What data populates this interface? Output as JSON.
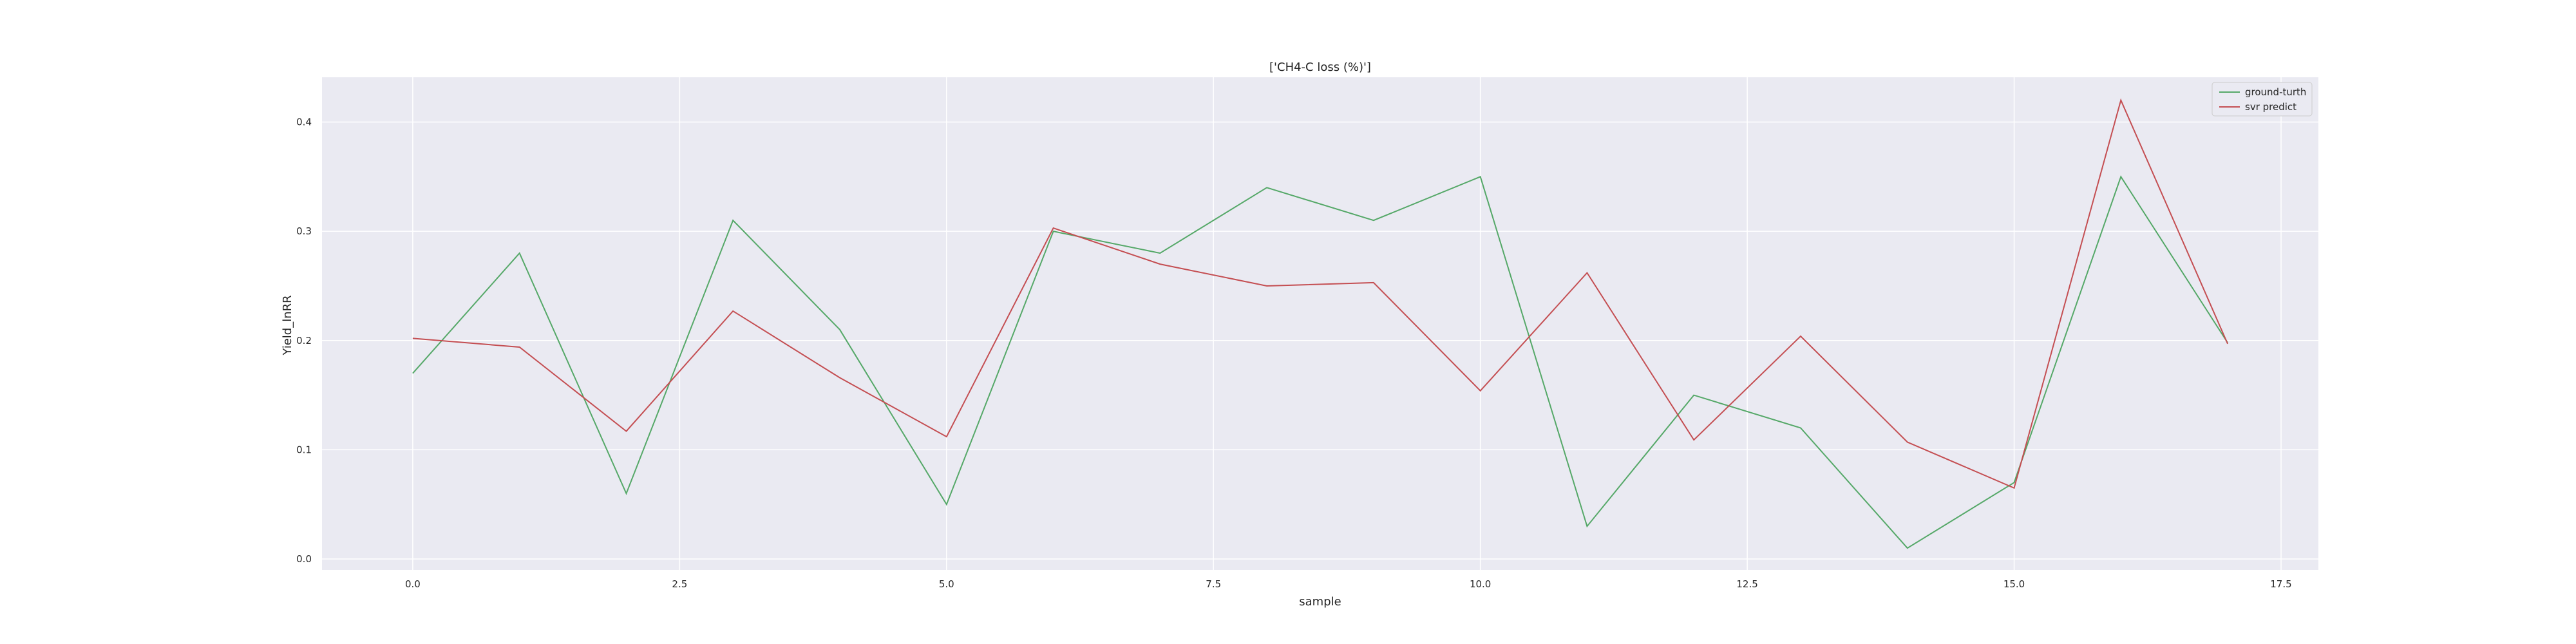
{
  "chart_data": {
    "type": "line",
    "title": "['CH4-C loss (%)']",
    "xlabel": "sample",
    "ylabel": "Yield_lnRR",
    "xlim": [
      -0.85,
      17.85
    ],
    "ylim": [
      -0.01,
      0.441
    ],
    "x": [
      0,
      1,
      2,
      3,
      4,
      5,
      6,
      7,
      8,
      9,
      10,
      11,
      12,
      13,
      14,
      15,
      16,
      17
    ],
    "x_ticks": [
      0.0,
      2.5,
      5.0,
      7.5,
      10.0,
      12.5,
      15.0,
      17.5
    ],
    "x_tick_labels": [
      "0.0",
      "2.5",
      "5.0",
      "7.5",
      "10.0",
      "12.5",
      "15.0",
      "17.5"
    ],
    "y_ticks": [
      0.0,
      0.1,
      0.2,
      0.3,
      0.4
    ],
    "y_tick_labels": [
      "0.0",
      "0.1",
      "0.2",
      "0.3",
      "0.4"
    ],
    "grid": true,
    "legend_position": "top-right",
    "series": [
      {
        "name": "ground-turth",
        "color": "#55a868",
        "values": [
          0.17,
          0.28,
          0.06,
          0.31,
          0.21,
          0.05,
          0.3,
          0.28,
          0.34,
          0.31,
          0.35,
          0.03,
          0.15,
          0.12,
          0.01,
          0.07,
          0.35,
          0.198
        ]
      },
      {
        "name": "svr predict",
        "color": "#c44e52",
        "values": [
          0.202,
          0.194,
          0.117,
          0.227,
          0.166,
          0.112,
          0.303,
          0.27,
          0.25,
          0.253,
          0.154,
          0.262,
          0.109,
          0.204,
          0.107,
          0.065,
          0.42,
          0.197
        ]
      }
    ]
  }
}
